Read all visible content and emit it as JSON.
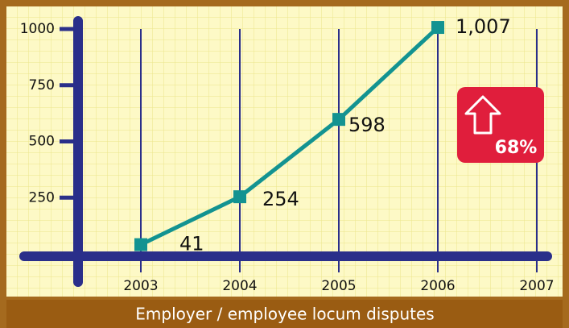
{
  "chart_data": {
    "type": "line",
    "title": "Employer / employee locum disputes",
    "categories": [
      "2003",
      "2004",
      "2005",
      "2006",
      "2007"
    ],
    "values": [
      41,
      254,
      598,
      1007,
      null
    ],
    "value_labels": [
      "41",
      "254",
      "598",
      "1,007",
      null
    ],
    "color": "#139391",
    "ylim": [
      0,
      1000
    ],
    "yticks": [
      250,
      500,
      750,
      1000
    ],
    "annotation": "68%",
    "grid": true
  }
}
